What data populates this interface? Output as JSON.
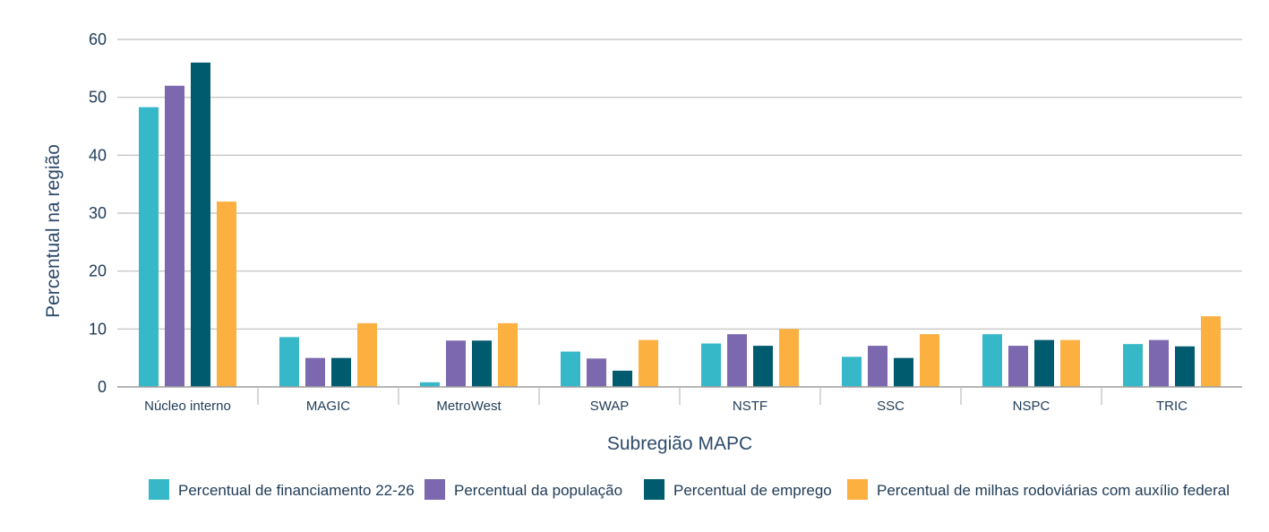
{
  "chart_data": {
    "type": "bar",
    "xlabel": "Subregião MAPC",
    "ylabel": "Percentual na região",
    "ylim": [
      0,
      60
    ],
    "yticks": [
      0,
      10,
      20,
      30,
      40,
      50,
      60
    ],
    "grid": true,
    "legend_position": "bottom",
    "categories": [
      "Núcleo interno",
      "MAGIC",
      "MetroWest",
      "SWAP",
      "NSTF",
      "SSC",
      "NSPC",
      "TRIC"
    ],
    "series": [
      {
        "name": "Percentual de financiamento 22-26",
        "color": "#37b8c9",
        "values": [
          48.3,
          8.6,
          0.8,
          6.1,
          7.5,
          5.2,
          9.1,
          7.4
        ]
      },
      {
        "name": "Percentual da população",
        "color": "#7b68ae",
        "values": [
          52,
          5,
          8,
          4.9,
          9.1,
          7.1,
          7.1,
          8.1
        ]
      },
      {
        "name": "Percentual de emprego",
        "color": "#005b6e",
        "values": [
          56,
          5,
          8,
          2.8,
          7.1,
          5,
          8.1,
          7
        ]
      },
      {
        "name": "Percentual de milhas rodoviárias com auxílio federal",
        "color": "#fbb040",
        "values": [
          32,
          11,
          11,
          8.1,
          10,
          9.1,
          8.1,
          12.2
        ]
      }
    ]
  }
}
